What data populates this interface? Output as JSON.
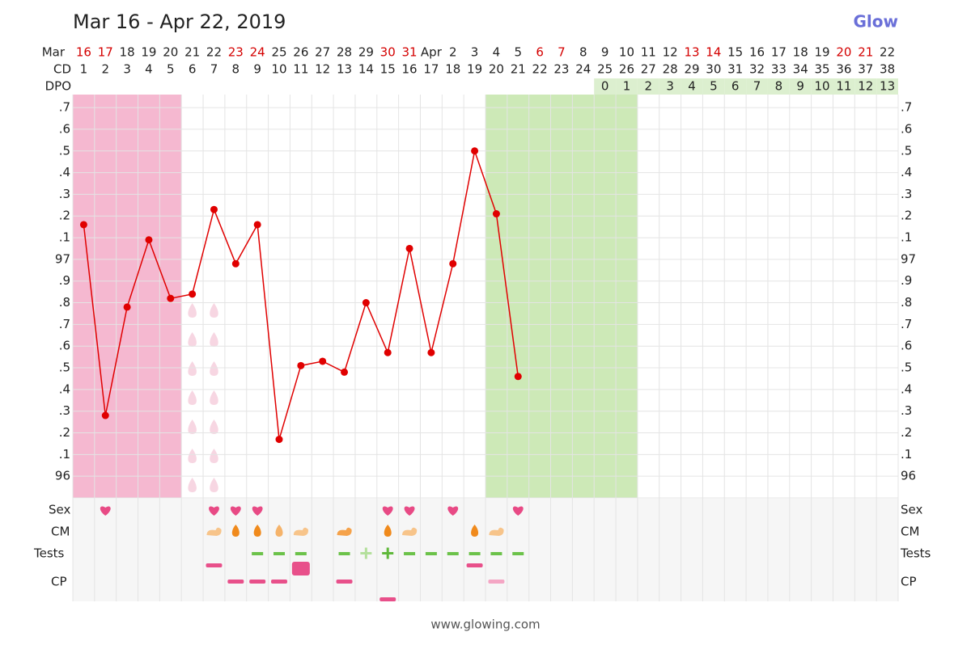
{
  "title": "Mar 16 - Apr 22, 2019",
  "brand": "Glow",
  "footer": "www.glowing.com",
  "chart_data": {
    "type": "line",
    "month_label": "Mar",
    "row_labels": {
      "cd": "CD",
      "dpo": "DPO",
      "sex": "Sex",
      "cm": "CM",
      "tests": "Tests",
      "cp": "CP"
    },
    "dates": [
      "16",
      "17",
      "18",
      "19",
      "20",
      "21",
      "22",
      "23",
      "24",
      "25",
      "26",
      "27",
      "28",
      "29",
      "30",
      "31",
      "Apr",
      "2",
      "3",
      "4",
      "5",
      "6",
      "7",
      "8",
      "9",
      "10",
      "11",
      "12",
      "13",
      "14",
      "15",
      "16",
      "17",
      "18",
      "19",
      "20",
      "21",
      "22"
    ],
    "weekend": [
      true,
      true,
      false,
      false,
      false,
      false,
      false,
      true,
      true,
      false,
      false,
      false,
      false,
      false,
      true,
      true,
      false,
      false,
      false,
      false,
      false,
      true,
      true,
      false,
      false,
      false,
      false,
      false,
      true,
      true,
      false,
      false,
      false,
      false,
      false,
      true,
      true,
      false
    ],
    "weekend_color": "#d40000",
    "cd": [
      1,
      2,
      3,
      4,
      5,
      6,
      7,
      8,
      9,
      10,
      11,
      12,
      13,
      14,
      15,
      16,
      17,
      18,
      19,
      20,
      21,
      22,
      23,
      24,
      25,
      26,
      27,
      28,
      29,
      30,
      31,
      32,
      33,
      34,
      35,
      36,
      37,
      38
    ],
    "dpo": [
      null,
      null,
      null,
      null,
      null,
      null,
      null,
      null,
      null,
      null,
      null,
      null,
      null,
      null,
      null,
      null,
      null,
      null,
      null,
      null,
      null,
      null,
      null,
      null,
      0,
      1,
      2,
      3,
      4,
      5,
      6,
      7,
      8,
      9,
      10,
      11,
      12,
      13
    ],
    "values": [
      97.16,
      96.28,
      96.78,
      97.09,
      96.82,
      96.84,
      97.23,
      96.98,
      97.16,
      96.17,
      96.51,
      96.53,
      96.48,
      96.8,
      96.57,
      97.05,
      96.57,
      96.98,
      97.5,
      97.21,
      96.46,
      null,
      null,
      null,
      null,
      null,
      null,
      null,
      null,
      null,
      null,
      null,
      null,
      null,
      null,
      null,
      null,
      null
    ],
    "color": "#e00000",
    "ylim": [
      95.9,
      97.76
    ],
    "yticks": [
      96,
      {
        "value": 96.1,
        "label": ".1"
      },
      {
        "value": 96.2,
        "label": ".2"
      },
      {
        "value": 96.3,
        "label": ".3"
      },
      {
        "value": 96.4,
        "label": ".4"
      },
      {
        "value": 96.5,
        "label": ".5"
      },
      {
        "value": 96.6,
        "label": ".6"
      },
      {
        "value": 96.7,
        "label": ".7"
      },
      {
        "value": 96.8,
        "label": ".8"
      },
      {
        "value": 96.9,
        "label": ".9"
      },
      97,
      {
        "value": 97.1,
        "label": ".1"
      },
      {
        "value": 97.2,
        "label": ".2"
      },
      {
        "value": 97.3,
        "label": ".3"
      },
      {
        "value": 97.4,
        "label": ".4"
      },
      {
        "value": 97.5,
        "label": ".5"
      },
      {
        "value": 97.6,
        "label": ".6"
      },
      {
        "value": 97.7,
        "label": ".7"
      }
    ],
    "grid": true,
    "period_days": [
      1,
      5
    ],
    "period_color": "#f5b8d0",
    "fertile_days": [
      20,
      26
    ],
    "fertile_color": "#cde9b7",
    "spotting_days": [
      6,
      7
    ],
    "sex_days": [
      2,
      7,
      8,
      9,
      15,
      16,
      18,
      21
    ],
    "cm_creamy_days": [
      7,
      11,
      13,
      16,
      20
    ],
    "cm_watery_days": [
      8,
      9,
      10,
      15,
      19
    ],
    "test_negative_days": [
      9,
      10,
      11,
      13,
      16,
      17,
      18,
      19,
      20,
      21
    ],
    "test_faint_positive_days": [
      14
    ],
    "test_positive_days": [
      15
    ],
    "cp_high_days": [
      7,
      19
    ],
    "cp_mid_days": [
      8,
      9,
      10,
      13
    ],
    "cp_soft_days": [
      20
    ],
    "cp_low_days": [
      15
    ],
    "cp_square_days": [
      11
    ]
  }
}
